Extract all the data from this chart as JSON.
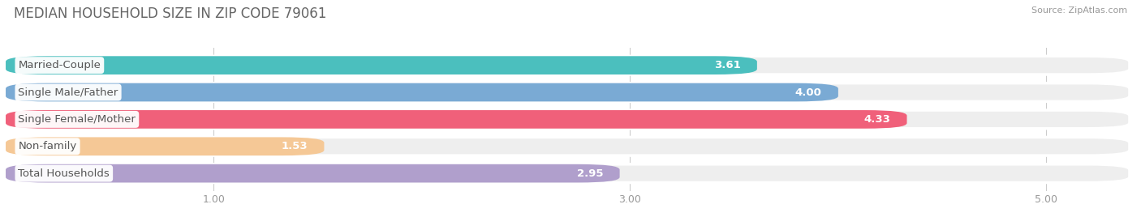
{
  "title": "MEDIAN HOUSEHOLD SIZE IN ZIP CODE 79061",
  "source": "Source: ZipAtlas.com",
  "categories": [
    "Married-Couple",
    "Single Male/Father",
    "Single Female/Mother",
    "Non-family",
    "Total Households"
  ],
  "values": [
    3.61,
    4.0,
    4.33,
    1.53,
    2.95
  ],
  "bar_colors": [
    "#4bbfbe",
    "#7aaad4",
    "#f0607a",
    "#f5c896",
    "#b09fcc"
  ],
  "bar_bg_colors": [
    "#eeeeee",
    "#eeeeee",
    "#eeeeee",
    "#eeeeee",
    "#eeeeee"
  ],
  "xlim_data": [
    0,
    5.4
  ],
  "xlim_display": [
    0,
    5.0
  ],
  "xticks": [
    1.0,
    3.0,
    5.0
  ],
  "xtick_labels": [
    "1.00",
    "3.00",
    "5.00"
  ],
  "title_fontsize": 12,
  "bar_height": 0.68,
  "bar_gap": 0.32,
  "value_label_color": "#ffffff",
  "label_color": "#555555",
  "label_fontsize": 9.5,
  "value_fontsize": 9.5,
  "background_color": "#ffffff",
  "grid_color": "#cccccc"
}
